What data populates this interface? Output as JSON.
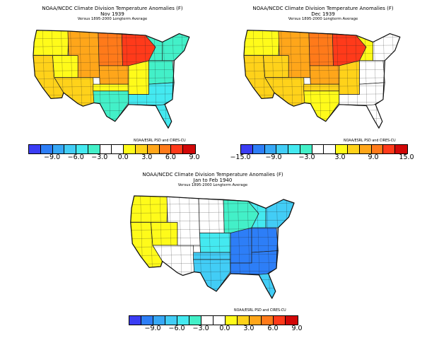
{
  "palette": {
    "d6": "#3b3df4",
    "d5": "#2d7ef7",
    "d4": "#37a8f6",
    "d3": "#42cdf6",
    "d2": "#44e9f0",
    "d1": "#43f0c8",
    "n": "#ffffff",
    "w1": "#fffb1a",
    "w2": "#ffd21a",
    "w3": "#ffa61a",
    "w4": "#ff7a1a",
    "w5": "#ff3a1a",
    "w6": "#d10808",
    "border": "#222222",
    "land_outline": "#111111"
  },
  "panels": [
    {
      "id": "nov-1939",
      "title": "NOAA/NCDC Climate Division Temperature Anomalies (F)",
      "period": "Nov 1939",
      "subtitle": "Versus 1895-2000 Longterm Average",
      "credit": "NOAA/ESRL PSD and CIRES-CU",
      "bar_colors": [
        "d6",
        "d5",
        "d4",
        "d3",
        "d2",
        "d1",
        "n",
        "n",
        "w1",
        "w2",
        "w3",
        "w4",
        "w5",
        "w6"
      ],
      "ticks": [
        {
          "label": "−9.0",
          "at": 0.143
        },
        {
          "label": "−6.0",
          "at": 0.286
        },
        {
          "label": "−3.0",
          "at": 0.429
        },
        {
          "label": "0.0",
          "at": 0.571
        },
        {
          "label": "3.0",
          "at": 0.714
        },
        {
          "label": "6.0",
          "at": 0.857
        },
        {
          "label": "9.0",
          "at": 1.0
        }
      ],
      "regions": {
        "pnw": "w1",
        "cal": "w2",
        "gb": "w1",
        "sw": "w2",
        "rockies": "w3",
        "npl": "w4",
        "uppermw": "w5",
        "cpl": "w3",
        "spl": "w1",
        "tx": "d1",
        "mw": "w1",
        "ohv": "d1",
        "southeast": "d2",
        "fl": "d2",
        "ne": "d1",
        "gl": "d1"
      }
    },
    {
      "id": "dec-1939",
      "title": "NOAA/NCDC Climate Division Temperature Anomalies (F)",
      "period": "Dec 1939",
      "subtitle": "Versus 1895-2000 Longterm Average",
      "credit": "NOAA/ESRL PSD and CIRES-CU",
      "bar_colors": [
        "d6",
        "d5",
        "d4",
        "d3",
        "d2",
        "d1",
        "n",
        "n",
        "w1",
        "w2",
        "w3",
        "w4",
        "w5",
        "w6"
      ],
      "ticks": [
        {
          "label": "−15.0",
          "at": 0.0
        },
        {
          "label": "−9.0",
          "at": 0.2
        },
        {
          "label": "−3.0",
          "at": 0.4
        },
        {
          "label": "3.0",
          "at": 0.6
        },
        {
          "label": "9.0",
          "at": 0.8
        },
        {
          "label": "15.0",
          "at": 1.0
        }
      ],
      "regions": {
        "pnw": "w1",
        "cal": "w2",
        "gb": "w2",
        "sw": "w2",
        "rockies": "w3",
        "npl": "w4",
        "uppermw": "w5",
        "cpl": "w3",
        "spl": "w2",
        "tx": "w1",
        "mw": "w2",
        "ohv": "n",
        "southeast": "n",
        "fl": "n",
        "ne": "n",
        "gl": "w1"
      }
    },
    {
      "id": "jan-feb-1940",
      "title": "NOAA/NCDC Climate Division Temperature Anomalies (F)",
      "period": "Jan to Feb 1940",
      "subtitle": "Versus 1895-2000 Longterm Average",
      "credit": "NOAA/ESRL PSD and CIRES-CU",
      "bar_colors": [
        "d6",
        "d5",
        "d4",
        "d3",
        "d2",
        "d1",
        "n",
        "n",
        "w1",
        "w2",
        "w3",
        "w4",
        "w5",
        "w6"
      ],
      "ticks": [
        {
          "label": "−9.0",
          "at": 0.143
        },
        {
          "label": "−6.0",
          "at": 0.286
        },
        {
          "label": "−3.0",
          "at": 0.429
        },
        {
          "label": "0.0",
          "at": 0.571
        },
        {
          "label": "3.0",
          "at": 0.714
        },
        {
          "label": "6.0",
          "at": 0.857
        },
        {
          "label": "9.0",
          "at": 1.0
        }
      ],
      "regions": {
        "pnw": "w1",
        "cal": "w1",
        "gb": "w1",
        "sw": "n",
        "rockies": "n",
        "npl": "n",
        "uppermw": "d1",
        "cpl": "d2",
        "spl": "d3",
        "tx": "d3",
        "mw": "d5",
        "ohv": "d5",
        "southeast": "d5",
        "fl": "d3",
        "ne": "d3",
        "gl": "d2"
      }
    }
  ]
}
